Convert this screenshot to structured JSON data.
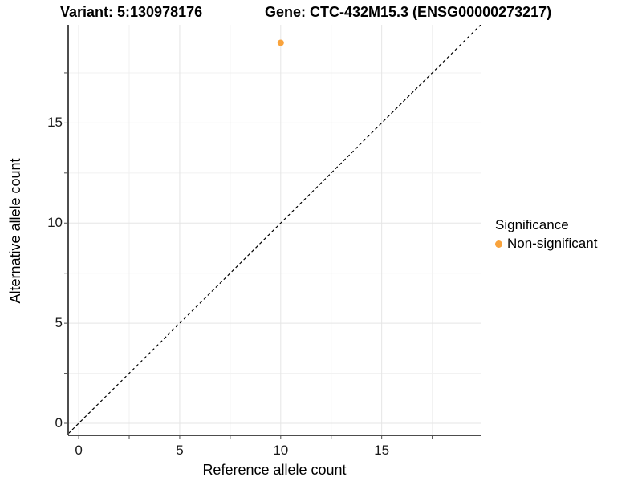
{
  "titles": {
    "variant": "Variant: 5:130978176",
    "gene": "Gene: CTC-432M15.3 (ENSG00000273217)"
  },
  "axes": {
    "x_label": "Reference allele count",
    "y_label": "Alternative allele count"
  },
  "legend": {
    "title": "Significance",
    "items": [
      {
        "label": "Non-significant",
        "color": "#F9A33C"
      }
    ]
  },
  "chart_data": {
    "type": "scatter",
    "title": "Variant: 5:130978176 | Gene: CTC-432M15.3 (ENSG00000273217)",
    "xlabel": "Reference allele count",
    "ylabel": "Alternative allele count",
    "xlim": [
      -0.52,
      19.9
    ],
    "ylim": [
      -0.6,
      19.9
    ],
    "x_ticks": [
      0,
      5,
      10,
      15
    ],
    "y_ticks": [
      0,
      5,
      10,
      15
    ],
    "x_minor_ticks": [
      2.5,
      7.5,
      12.5,
      17.5
    ],
    "y_minor_ticks": [
      2.5,
      7.5,
      12.5,
      17.5
    ],
    "grid": true,
    "legend_position": "right",
    "reference_line": {
      "type": "identity",
      "style": "dashed",
      "color": "#000000"
    },
    "series": [
      {
        "name": "Non-significant",
        "color": "#F9A33C",
        "points": [
          {
            "x": 10,
            "y": 19
          }
        ]
      }
    ]
  },
  "style": {
    "background": "#FFFFFF",
    "grid_major": "#E5E5E5",
    "grid_minor": "#F1F1F1",
    "axis_line": "#4D4D4D",
    "tick_mark": "#4D4D4D",
    "point_radius": 4
  }
}
